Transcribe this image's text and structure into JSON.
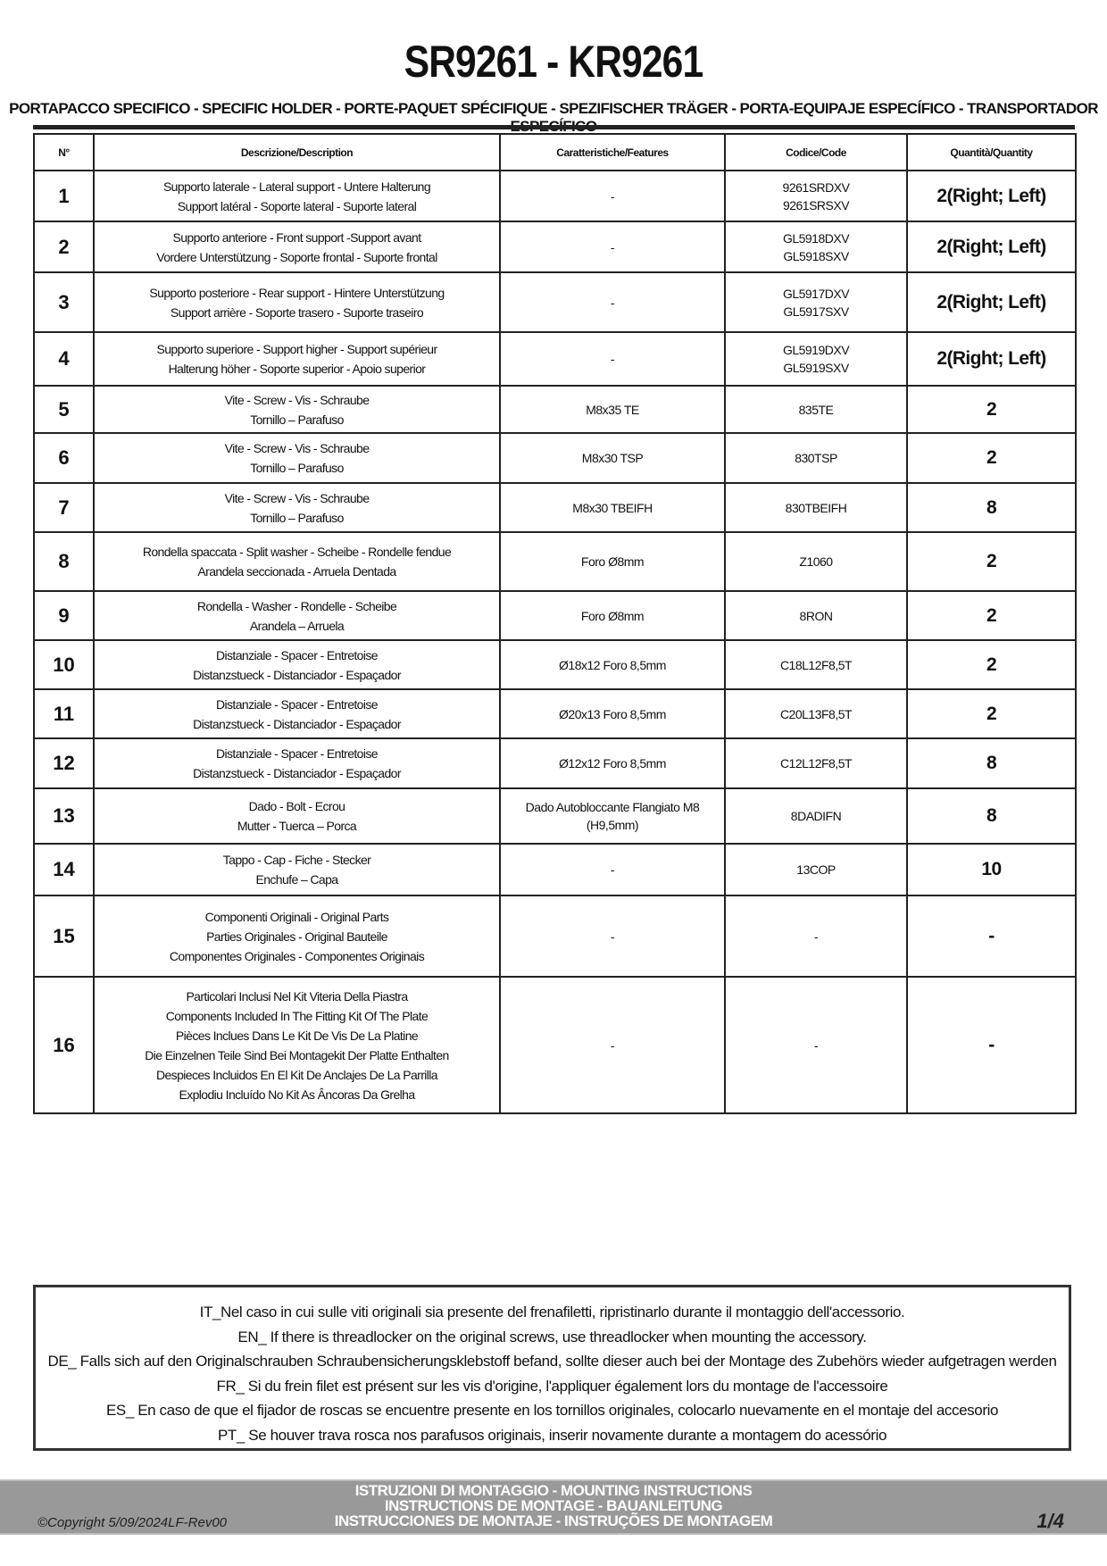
{
  "header": {
    "title": "SR9261 - KR9261",
    "subtitle": "PORTAPACCO SPECIFICO - SPECIFIC HOLDER - PORTE-PAQUET SPÉCIFIQUE - SPEZIFISCHER TRÄGER - PORTA-EQUIPAJE ESPECÍFICO - TRANSPORTADOR ESPECÍFICO"
  },
  "table": {
    "columns": [
      "N°",
      "Descrizione/Description",
      "Caratteristiche/Features",
      "Codice/Code",
      "Quantità/Quantity"
    ],
    "rows": [
      {
        "n": "1",
        "desc": [
          "Supporto laterale - Lateral support - Untere Halterung",
          "Support latéral - Soporte lateral - Suporte lateral"
        ],
        "features": "-",
        "code": [
          "9261SRDXV",
          "9261SRSXV"
        ],
        "qty": "2(Right; Left)"
      },
      {
        "n": "2",
        "desc": [
          "Supporto anteriore - Front support -Support avant",
          "Vordere Unterstützung - Soporte frontal - Suporte frontal"
        ],
        "features": "-",
        "code": [
          "GL5918DXV",
          "GL5918SXV"
        ],
        "qty": "2(Right; Left)"
      },
      {
        "n": "3",
        "desc": [
          "Supporto posteriore - Rear support - Hintere Unterstützung",
          "Support arrière - Soporte trasero - Suporte traseiro"
        ],
        "features": "-",
        "code": [
          "GL5917DXV",
          "GL5917SXV"
        ],
        "qty": "2(Right; Left)"
      },
      {
        "n": "4",
        "desc": [
          "Supporto superiore - Support higher - Support supérieur",
          "Halterung höher - Soporte superior - Apoio superior"
        ],
        "features": "-",
        "code": [
          "GL5919DXV",
          "GL5919SXV"
        ],
        "qty": "2(Right; Left)"
      },
      {
        "n": "5",
        "desc": [
          "Vite - Screw - Vis - Schraube",
          "Tornillo – Parafuso"
        ],
        "features": "M8x35 TE",
        "code": [
          "835TE"
        ],
        "qty": "2"
      },
      {
        "n": "6",
        "desc": [
          "Vite - Screw - Vis - Schraube",
          "Tornillo – Parafuso"
        ],
        "features": "M8x30 TSP",
        "code": [
          "830TSP"
        ],
        "qty": "2"
      },
      {
        "n": "7",
        "desc": [
          "Vite - Screw - Vis - Schraube",
          "Tornillo – Parafuso"
        ],
        "features": "M8x30 TBEIFH",
        "code": [
          "830TBEIFH"
        ],
        "qty": "8"
      },
      {
        "n": "8",
        "desc": [
          "Rondella spaccata - Split washer - Scheibe - Rondelle fendue",
          "Arandela seccionada - Arruela Dentada"
        ],
        "features": "Foro Ø8mm",
        "code": [
          "Z1060"
        ],
        "qty": "2"
      },
      {
        "n": "9",
        "desc": [
          "Rondella - Washer - Rondelle - Scheibe",
          "Arandela – Arruela"
        ],
        "features": "Foro Ø8mm",
        "code": [
          "8RON"
        ],
        "qty": "2"
      },
      {
        "n": "10",
        "desc": [
          "Distanziale - Spacer - Entretoise",
          "Distanzstueck - Distanciador - Espaçador"
        ],
        "features": "Ø18x12 Foro 8,5mm",
        "code": [
          "C18L12F8,5T"
        ],
        "qty": "2"
      },
      {
        "n": "11",
        "desc": [
          "Distanziale - Spacer - Entretoise",
          "Distanzstueck - Distanciador - Espaçador"
        ],
        "features": "Ø20x13 Foro 8,5mm",
        "code": [
          "C20L13F8,5T"
        ],
        "qty": "2"
      },
      {
        "n": "12",
        "desc": [
          "Distanziale - Spacer - Entretoise",
          "Distanzstueck - Distanciador - Espaçador"
        ],
        "features": "Ø12x12 Foro 8,5mm",
        "code": [
          "C12L12F8,5T"
        ],
        "qty": "8"
      },
      {
        "n": "13",
        "desc": [
          "Dado - Bolt - Ecrou",
          "Mutter - Tuerca – Porca"
        ],
        "features": "Dado Autobloccante Flangiato M8 (H9,5mm)",
        "code": [
          "8DADIFN"
        ],
        "qty": "8"
      },
      {
        "n": "14",
        "desc": [
          "Tappo - Cap - Fiche - Stecker",
          "Enchufe – Capa"
        ],
        "features": "-",
        "code": [
          "13COP"
        ],
        "qty": "10"
      },
      {
        "n": "15",
        "desc": [
          "Componenti Originali - Original Parts",
          "Parties Originales - Original Bauteile",
          "Componentes Originales - Componentes Originais"
        ],
        "features": "-",
        "code": [
          "-"
        ],
        "qty": "-"
      },
      {
        "n": "16",
        "desc": [
          "Particolari Inclusi Nel Kit Viteria Della Piastra",
          "Components Included In The Fitting Kit Of The Plate",
          "Pièces Inclues Dans Le Kit De Vis De La Platine",
          "Die Einzelnen Teile Sind Bei Montagekit Der Platte Enthalten",
          "Despieces Incluidos En El Kit De Anclajes De La Parrilla",
          "Explodiu Incluído No Kit As Âncoras Da Grelha"
        ],
        "features": "-",
        "code": [
          "-"
        ],
        "qty": "-"
      }
    ]
  },
  "notes": [
    "IT_Nel caso in cui sulle viti originali sia presente del frenafiletti, ripristinarlo durante il montaggio dell'accessorio.",
    "EN_ If there is threadlocker on the original screws, use threadlocker when mounting the accessory.",
    "DE_ Falls sich auf den Originalschrauben Schraubensicherungsklebstoff befand, sollte dieser auch bei der Montage des Zubehörs wieder aufgetragen werden",
    "FR_ Si du frein filet est présent sur les vis d'origine, l'appliquer également lors du montage de l'accessoire",
    "ES_ En caso de que el fijador de roscas se encuentre presente en los tornillos originales, colocarlo nuevamente en el montaje del accesorio",
    "PT_ Se houver trava rosca nos parafusos originais, inserir novamente durante a montagem do acessório"
  ],
  "footer": {
    "titles": [
      "ISTRUZIONI DI MONTAGGIO  -  MOUNTING INSTRUCTIONS",
      "INSTRUCTIONS DE MONTAGE - BAUANLEITUNG",
      "INSTRUCCIONES DE MONTAJE - INSTRUÇÕES DE MONTAGEM"
    ],
    "copyright": "©Copyright 5/09/2024LF-Rev00",
    "page": "1/4"
  }
}
